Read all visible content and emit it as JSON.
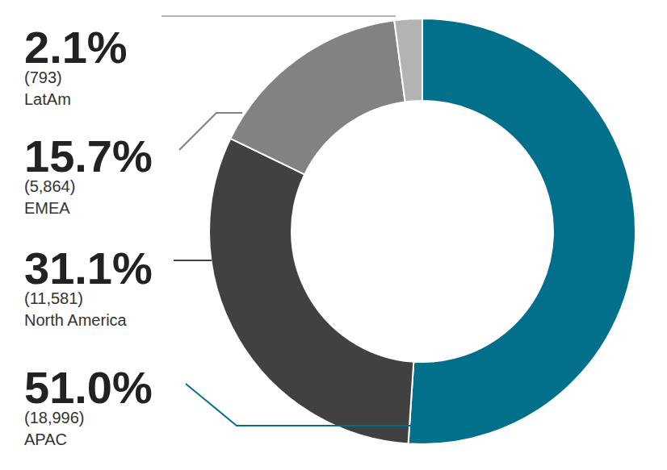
{
  "chart_data": {
    "type": "donut",
    "categories": [
      "APAC",
      "North America",
      "EMEA",
      "LatAm"
    ],
    "values": [
      51.0,
      31.1,
      15.7,
      2.1
    ],
    "value_labels": [
      "51.0%",
      "31.1%",
      "15.7%",
      "2.1%"
    ],
    "counts": [
      18996,
      11581,
      5864,
      793
    ],
    "colors": [
      "#026f8b",
      "#414141",
      "#828282",
      "#b3b3b3"
    ],
    "data_labels": true
  }
}
